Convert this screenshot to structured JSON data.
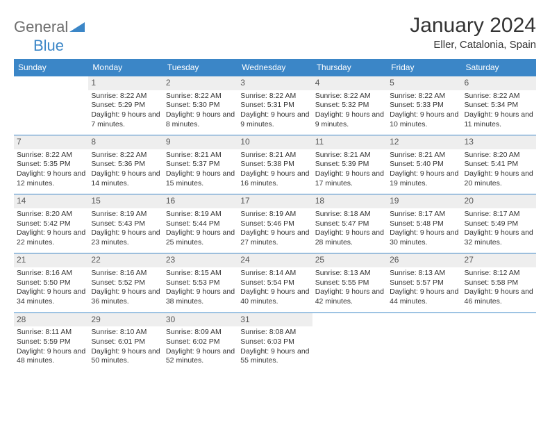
{
  "logo": {
    "text1": "General",
    "text2": "Blue"
  },
  "title": "January 2024",
  "subtitle": "Eller, Catalonia, Spain",
  "colors": {
    "header_bg": "#3b86c7",
    "header_text": "#ffffff",
    "daynum_bg": "#eeeeee",
    "divider": "#3b86c7",
    "logo_gray": "#6e6e6e",
    "logo_blue": "#3b86c7",
    "text": "#333333"
  },
  "dow": [
    "Sunday",
    "Monday",
    "Tuesday",
    "Wednesday",
    "Thursday",
    "Friday",
    "Saturday"
  ],
  "weeks": [
    [
      null,
      {
        "n": "1",
        "sr": "Sunrise: 8:22 AM",
        "ss": "Sunset: 5:29 PM",
        "dl": "Daylight: 9 hours and 7 minutes."
      },
      {
        "n": "2",
        "sr": "Sunrise: 8:22 AM",
        "ss": "Sunset: 5:30 PM",
        "dl": "Daylight: 9 hours and 8 minutes."
      },
      {
        "n": "3",
        "sr": "Sunrise: 8:22 AM",
        "ss": "Sunset: 5:31 PM",
        "dl": "Daylight: 9 hours and 9 minutes."
      },
      {
        "n": "4",
        "sr": "Sunrise: 8:22 AM",
        "ss": "Sunset: 5:32 PM",
        "dl": "Daylight: 9 hours and 9 minutes."
      },
      {
        "n": "5",
        "sr": "Sunrise: 8:22 AM",
        "ss": "Sunset: 5:33 PM",
        "dl": "Daylight: 9 hours and 10 minutes."
      },
      {
        "n": "6",
        "sr": "Sunrise: 8:22 AM",
        "ss": "Sunset: 5:34 PM",
        "dl": "Daylight: 9 hours and 11 minutes."
      }
    ],
    [
      {
        "n": "7",
        "sr": "Sunrise: 8:22 AM",
        "ss": "Sunset: 5:35 PM",
        "dl": "Daylight: 9 hours and 12 minutes."
      },
      {
        "n": "8",
        "sr": "Sunrise: 8:22 AM",
        "ss": "Sunset: 5:36 PM",
        "dl": "Daylight: 9 hours and 14 minutes."
      },
      {
        "n": "9",
        "sr": "Sunrise: 8:21 AM",
        "ss": "Sunset: 5:37 PM",
        "dl": "Daylight: 9 hours and 15 minutes."
      },
      {
        "n": "10",
        "sr": "Sunrise: 8:21 AM",
        "ss": "Sunset: 5:38 PM",
        "dl": "Daylight: 9 hours and 16 minutes."
      },
      {
        "n": "11",
        "sr": "Sunrise: 8:21 AM",
        "ss": "Sunset: 5:39 PM",
        "dl": "Daylight: 9 hours and 17 minutes."
      },
      {
        "n": "12",
        "sr": "Sunrise: 8:21 AM",
        "ss": "Sunset: 5:40 PM",
        "dl": "Daylight: 9 hours and 19 minutes."
      },
      {
        "n": "13",
        "sr": "Sunrise: 8:20 AM",
        "ss": "Sunset: 5:41 PM",
        "dl": "Daylight: 9 hours and 20 minutes."
      }
    ],
    [
      {
        "n": "14",
        "sr": "Sunrise: 8:20 AM",
        "ss": "Sunset: 5:42 PM",
        "dl": "Daylight: 9 hours and 22 minutes."
      },
      {
        "n": "15",
        "sr": "Sunrise: 8:19 AM",
        "ss": "Sunset: 5:43 PM",
        "dl": "Daylight: 9 hours and 23 minutes."
      },
      {
        "n": "16",
        "sr": "Sunrise: 8:19 AM",
        "ss": "Sunset: 5:44 PM",
        "dl": "Daylight: 9 hours and 25 minutes."
      },
      {
        "n": "17",
        "sr": "Sunrise: 8:19 AM",
        "ss": "Sunset: 5:46 PM",
        "dl": "Daylight: 9 hours and 27 minutes."
      },
      {
        "n": "18",
        "sr": "Sunrise: 8:18 AM",
        "ss": "Sunset: 5:47 PM",
        "dl": "Daylight: 9 hours and 28 minutes."
      },
      {
        "n": "19",
        "sr": "Sunrise: 8:17 AM",
        "ss": "Sunset: 5:48 PM",
        "dl": "Daylight: 9 hours and 30 minutes."
      },
      {
        "n": "20",
        "sr": "Sunrise: 8:17 AM",
        "ss": "Sunset: 5:49 PM",
        "dl": "Daylight: 9 hours and 32 minutes."
      }
    ],
    [
      {
        "n": "21",
        "sr": "Sunrise: 8:16 AM",
        "ss": "Sunset: 5:50 PM",
        "dl": "Daylight: 9 hours and 34 minutes."
      },
      {
        "n": "22",
        "sr": "Sunrise: 8:16 AM",
        "ss": "Sunset: 5:52 PM",
        "dl": "Daylight: 9 hours and 36 minutes."
      },
      {
        "n": "23",
        "sr": "Sunrise: 8:15 AM",
        "ss": "Sunset: 5:53 PM",
        "dl": "Daylight: 9 hours and 38 minutes."
      },
      {
        "n": "24",
        "sr": "Sunrise: 8:14 AM",
        "ss": "Sunset: 5:54 PM",
        "dl": "Daylight: 9 hours and 40 minutes."
      },
      {
        "n": "25",
        "sr": "Sunrise: 8:13 AM",
        "ss": "Sunset: 5:55 PM",
        "dl": "Daylight: 9 hours and 42 minutes."
      },
      {
        "n": "26",
        "sr": "Sunrise: 8:13 AM",
        "ss": "Sunset: 5:57 PM",
        "dl": "Daylight: 9 hours and 44 minutes."
      },
      {
        "n": "27",
        "sr": "Sunrise: 8:12 AM",
        "ss": "Sunset: 5:58 PM",
        "dl": "Daylight: 9 hours and 46 minutes."
      }
    ],
    [
      {
        "n": "28",
        "sr": "Sunrise: 8:11 AM",
        "ss": "Sunset: 5:59 PM",
        "dl": "Daylight: 9 hours and 48 minutes."
      },
      {
        "n": "29",
        "sr": "Sunrise: 8:10 AM",
        "ss": "Sunset: 6:01 PM",
        "dl": "Daylight: 9 hours and 50 minutes."
      },
      {
        "n": "30",
        "sr": "Sunrise: 8:09 AM",
        "ss": "Sunset: 6:02 PM",
        "dl": "Daylight: 9 hours and 52 minutes."
      },
      {
        "n": "31",
        "sr": "Sunrise: 8:08 AM",
        "ss": "Sunset: 6:03 PM",
        "dl": "Daylight: 9 hours and 55 minutes."
      },
      null,
      null,
      null
    ]
  ]
}
